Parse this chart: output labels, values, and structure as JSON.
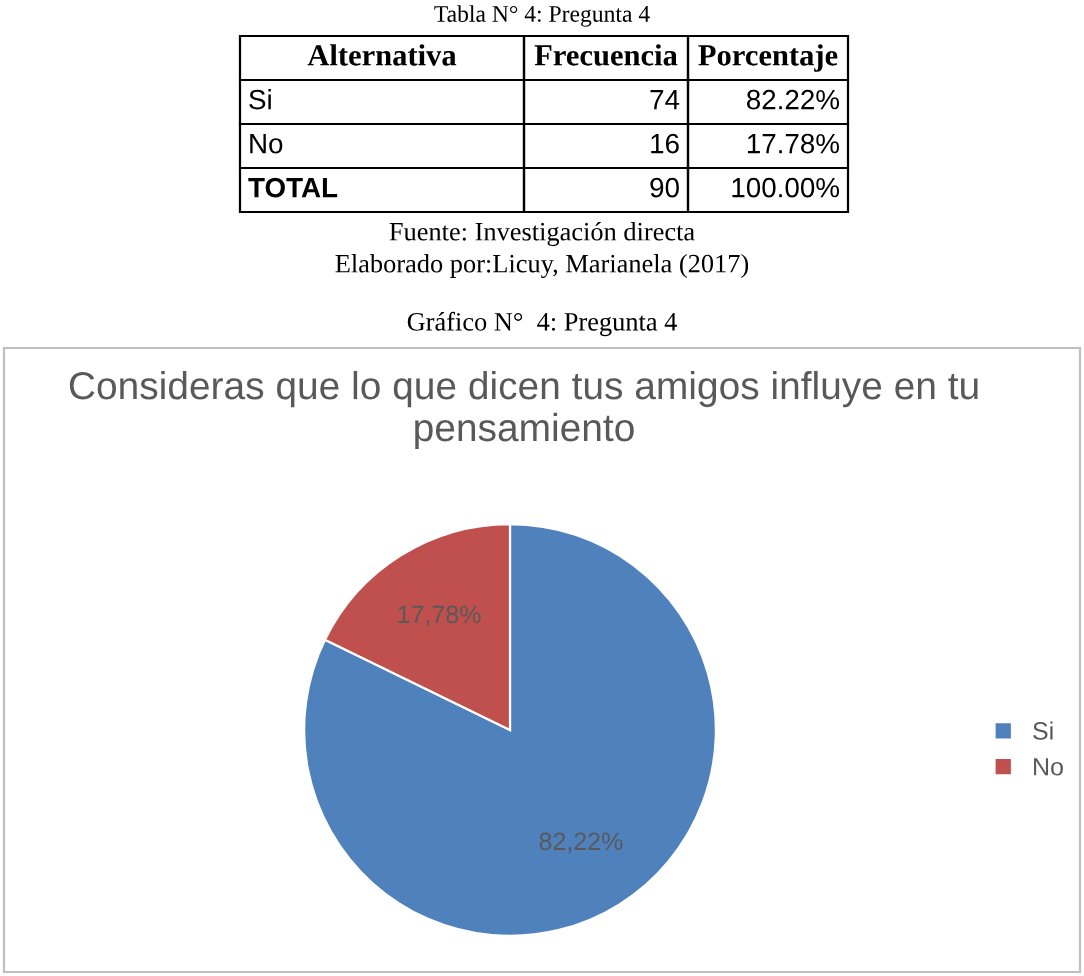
{
  "chart_data": {
    "type": "pie",
    "title": "Consideras que lo que dicen tus amigos influye en tu pensamiento",
    "categories": [
      "Si",
      "No"
    ],
    "values": [
      82.22,
      17.78
    ],
    "colors": [
      "#4f81bd",
      "#c0504d"
    ],
    "value_labels": [
      "82,22%",
      "17,78%"
    ],
    "legend": "right",
    "annotations": [
      "Tabla N° 4: Pregunta 4",
      "Alternativa",
      "Frecuencia",
      "Porcentaje",
      "Si",
      "74",
      "82.22%",
      "No",
      "16",
      "17.78%",
      "TOTAL",
      "90",
      "100.00%",
      "Fuente: Investigación directa",
      "Elaborado por:Licuy, Marianela (2017)",
      "Gráfico N°  4: Pregunta 4"
    ]
  }
}
